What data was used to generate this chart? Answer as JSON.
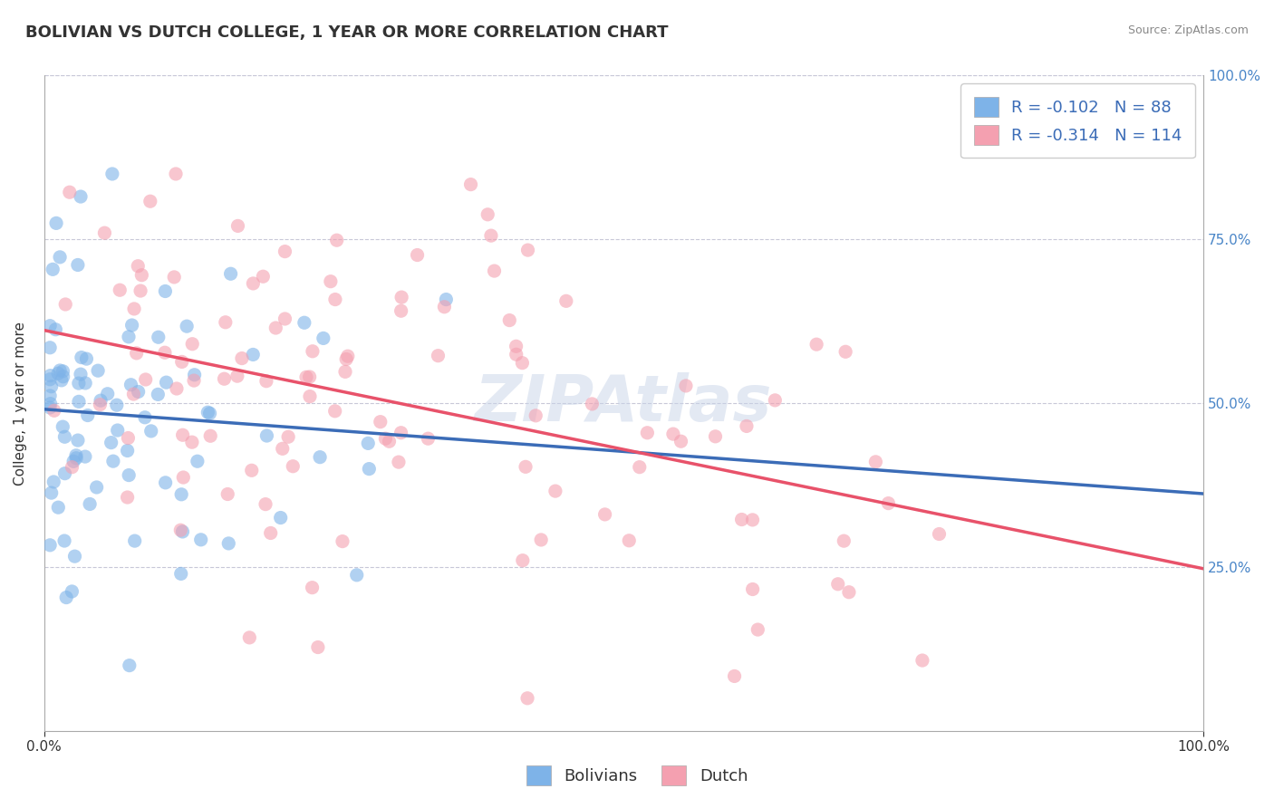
{
  "title": "BOLIVIAN VS DUTCH COLLEGE, 1 YEAR OR MORE CORRELATION CHART",
  "source_text": "Source: ZipAtlas.com",
  "xlabel": "",
  "ylabel": "College, 1 year or more",
  "xlim": [
    0.0,
    1.0
  ],
  "ylim": [
    0.0,
    1.0
  ],
  "xtick_labels": [
    "0.0%",
    "100.0%"
  ],
  "ytick_labels": [
    "25.0%",
    "50.0%",
    "75.0%",
    "100.0%"
  ],
  "ytick_values": [
    0.25,
    0.5,
    0.75,
    1.0
  ],
  "bolivians_R": -0.102,
  "bolivians_N": 88,
  "dutch_R": -0.314,
  "dutch_N": 114,
  "bolivian_color": "#7EB3E8",
  "dutch_color": "#F4A0B0",
  "bolivian_line_color": "#3B6CB7",
  "dutch_line_color": "#E8526A",
  "bolivian_scatter_alpha": 0.6,
  "dutch_scatter_alpha": 0.6,
  "title_fontsize": 13,
  "axis_label_fontsize": 11,
  "tick_fontsize": 11,
  "legend_fontsize": 13,
  "background_color": "#ffffff",
  "grid_color": "#c8c8d8",
  "watermark_text": "ZIPAtlas",
  "watermark_color": "#c8d4e8",
  "watermark_alpha": 0.5,
  "right_ytick_color": "#4a86c8",
  "seed_bolivians": 42,
  "seed_dutch": 123
}
